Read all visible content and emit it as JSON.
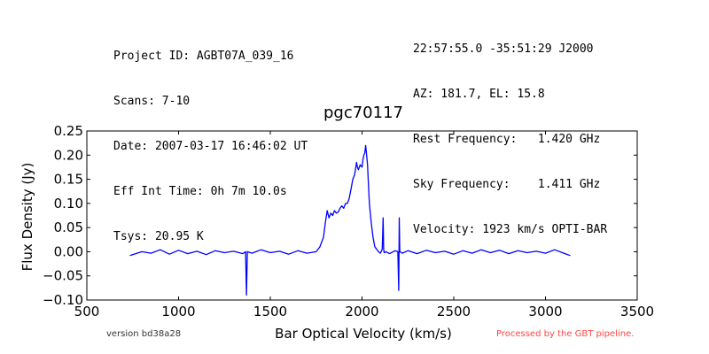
{
  "header": {
    "left_lines": [
      "Project ID: AGBT07A_039_16",
      "Scans: 7-10",
      "Date: 2007-03-17 16:46:02 UT",
      "Eff Int Time: 0h 7m 10.0s",
      "Tsys: 20.95 K"
    ],
    "right_lines": [
      "22:57:55.0 -35:51:29 J2000",
      "AZ: 181.7, EL: 15.8",
      "Rest Frequency:   1.420 GHz",
      "Sky Frequency:    1.411 GHz",
      "Velocity: 1923 km/s OPTI-BAR"
    ]
  },
  "footer": {
    "version": "version bd38a28",
    "pipeline": "Processed by the GBT pipeline."
  },
  "colors": {
    "line": "#0000ff",
    "pipeline_text": "#ff4444",
    "version_text": "#333333"
  },
  "chart_data": {
    "type": "line",
    "title": "pgc70117",
    "xlabel": "Bar Optical Velocity (km/s)",
    "ylabel": "Flux Density (Jy)",
    "xlim": [
      500,
      3500
    ],
    "ylim": [
      -0.1,
      0.25
    ],
    "xticks": [
      "500",
      "1000",
      "1500",
      "2000",
      "2500",
      "3000",
      "3500"
    ],
    "yticks": [
      "−0.10",
      "−0.05",
      "0.00",
      "0.05",
      "0.10",
      "0.15",
      "0.20",
      "0.25"
    ],
    "grid": false,
    "series": [
      {
        "x": [
          735,
          800,
          850,
          900,
          950,
          1000,
          1050,
          1100,
          1150,
          1200,
          1250,
          1300,
          1350,
          1365,
          1370,
          1375,
          1400,
          1450,
          1500,
          1550,
          1600,
          1650,
          1700,
          1750,
          1770,
          1790,
          1800,
          1810,
          1820,
          1830,
          1840,
          1850,
          1860,
          1870,
          1880,
          1890,
          1900,
          1910,
          1920,
          1930,
          1940,
          1950,
          1960,
          1970,
          1975,
          1980,
          1990,
          2000,
          2005,
          2010,
          2015,
          2020,
          2025,
          2030,
          2035,
          2040,
          2050,
          2060,
          2070,
          2080,
          2090,
          2100,
          2110,
          2115,
          2118,
          2121,
          2130,
          2150,
          2180,
          2195,
          2200,
          2203,
          2206,
          2220,
          2250,
          2300,
          2350,
          2400,
          2450,
          2500,
          2550,
          2600,
          2650,
          2700,
          2750,
          2800,
          2850,
          2900,
          2950,
          3000,
          3050,
          3100,
          3135
        ],
        "y": [
          -0.008,
          0.0,
          -0.003,
          0.004,
          -0.005,
          0.003,
          -0.004,
          0.001,
          -0.006,
          0.002,
          -0.002,
          0.001,
          -0.004,
          0.0,
          -0.09,
          0.0,
          -0.003,
          0.004,
          -0.002,
          0.001,
          -0.005,
          0.002,
          -0.003,
          0.0,
          0.01,
          0.03,
          0.06,
          0.085,
          0.07,
          0.08,
          0.075,
          0.085,
          0.08,
          0.082,
          0.09,
          0.095,
          0.09,
          0.1,
          0.1,
          0.11,
          0.13,
          0.15,
          0.16,
          0.185,
          0.175,
          0.17,
          0.18,
          0.175,
          0.19,
          0.2,
          0.205,
          0.22,
          0.2,
          0.18,
          0.14,
          0.1,
          0.06,
          0.03,
          0.01,
          0.005,
          0.0,
          -0.003,
          0.005,
          0.07,
          0.005,
          -0.002,
          0.0,
          -0.004,
          0.002,
          0.0,
          -0.08,
          0.07,
          0.0,
          -0.003,
          0.002,
          -0.004,
          0.003,
          -0.002,
          0.001,
          -0.005,
          0.002,
          -0.003,
          0.004,
          -0.002,
          0.003,
          -0.004,
          0.002,
          -0.002,
          0.001,
          -0.003,
          0.004,
          -0.003,
          -0.008
        ]
      }
    ]
  }
}
